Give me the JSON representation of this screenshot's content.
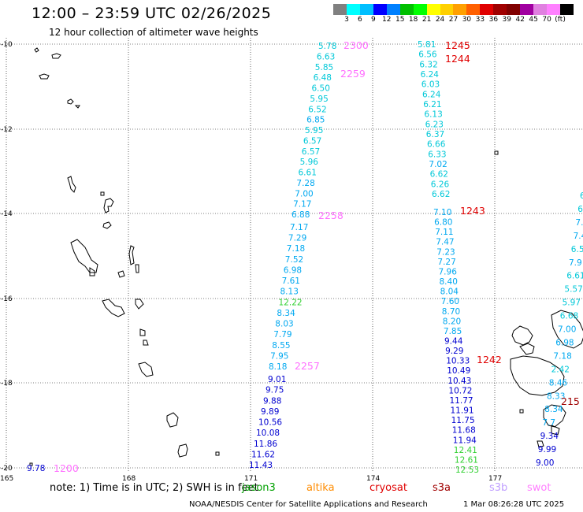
{
  "title": "12:00 – 23:59 UTC 02/26/2025",
  "subtitle": "12 hour collection of altimeter wave heights",
  "colorscale": {
    "colors": [
      "#808080",
      "#00ffff",
      "#00bfff",
      "#0000ff",
      "#0080ff",
      "#00c000",
      "#00ff00",
      "#ffff00",
      "#ffd000",
      "#ffa000",
      "#ff6000",
      "#e00000",
      "#a00000",
      "#800000",
      "#a000a0",
      "#e080e0",
      "#ff80ff",
      "#000000"
    ],
    "labels": [
      "3",
      "6",
      "9",
      "12",
      "15",
      "18",
      "21",
      "24",
      "27",
      "30",
      "33",
      "36",
      "39",
      "42",
      "45",
      "70",
      "(ft)"
    ]
  },
  "axes": {
    "lat_labels": [
      "-10",
      "-12",
      "-14",
      "-16",
      "-18",
      "-20"
    ],
    "lon_labels": [
      "165",
      "168",
      "171",
      "174",
      "177"
    ]
  },
  "tracks": {
    "t2300": {
      "time": "2300",
      "color": "#ff70ff",
      "values": [
        "5.78",
        "6.63",
        "5.85",
        "6.48",
        "6.50",
        "5.95",
        "6.52",
        "6.85",
        "5.95",
        "6.57",
        "6.57",
        "5.96",
        "6.61",
        "7.28",
        "7.00",
        "7.17",
        "6.88"
      ]
    },
    "t2259": {
      "time": "2259",
      "color": "#ff70ff"
    },
    "t2258": {
      "time": "2258",
      "color": "#ff70ff",
      "values": [
        "7.17",
        "7.29",
        "7.18",
        "7.52",
        "6.98",
        "7.61",
        "8.13",
        "12.22",
        "8.34",
        "8.03",
        "7.79",
        "8.55",
        "7.95",
        "8.18"
      ]
    },
    "t2257": {
      "time": "2257",
      "color": "#ff70ff",
      "values": [
        "9.01",
        "9.75",
        "9.88",
        "9.89",
        "10.56",
        "10.08",
        "11.86",
        "11.62",
        "11.43"
      ]
    },
    "t1245": {
      "time": "1245",
      "color": "#e00000",
      "values": [
        "5.81",
        "6.56",
        "6.32",
        "6.24",
        "6.03",
        "6.24",
        "6.21",
        "6.13",
        "6.23",
        "6.37",
        "6.66",
        "6.33",
        "7.02",
        "6.62",
        "6.26",
        "6.62"
      ]
    },
    "t1244": {
      "time": "1244",
      "color": "#e00000"
    },
    "t1243": {
      "time": "1243",
      "color": "#e00000",
      "values": [
        "7.10",
        "6.80",
        "7.11",
        "7.47",
        "7.23",
        "7.27",
        "7.96",
        "8.40",
        "8.04",
        "7.60",
        "8.70",
        "8.20",
        "7.85",
        "9.44",
        "9.29",
        "10.33",
        "10.49",
        "10.43",
        "10.72",
        "11.77",
        "11.91",
        "11.75",
        "11.68",
        "11.94",
        "12.41",
        "12.61",
        "12.53"
      ]
    },
    "t1242": {
      "time": "1242",
      "color": "#e00000"
    },
    "t1200": {
      "time": "1200",
      "color": "#ff70ff",
      "values": [
        "9.78"
      ]
    },
    "t215": {
      "time": "215",
      "color": "#a00000",
      "values": [
        "6.",
        "6.",
        "7.",
        "7.4",
        "6.5",
        "7.9",
        "6.61",
        "5.57",
        "5.97",
        "6.68",
        "7.00",
        "6.98",
        "7.18",
        "2.42",
        "8.46",
        "8.33",
        "8.34",
        "7.7",
        "9.34",
        "9.99",
        "9.00"
      ]
    }
  },
  "legend_note": {
    "prefix": "note: 1) Time is in UTC; 2) SWH is in feet",
    "sources": [
      {
        "name": "jason3",
        "color": "#00a000"
      },
      {
        "name": "altika",
        "color": "#ff8c00"
      },
      {
        "name": "cryosat",
        "color": "#e00000"
      },
      {
        "name": "s3a",
        "color": "#a00000"
      },
      {
        "name": "s3b",
        "color": "#c0a0ff"
      },
      {
        "name": "swot",
        "color": "#ff80ff"
      }
    ]
  },
  "credit": "NOAA/NESDIS Center for Satellite Applications and Research",
  "generated": "1 Mar 08:26:28 UTC 2025"
}
